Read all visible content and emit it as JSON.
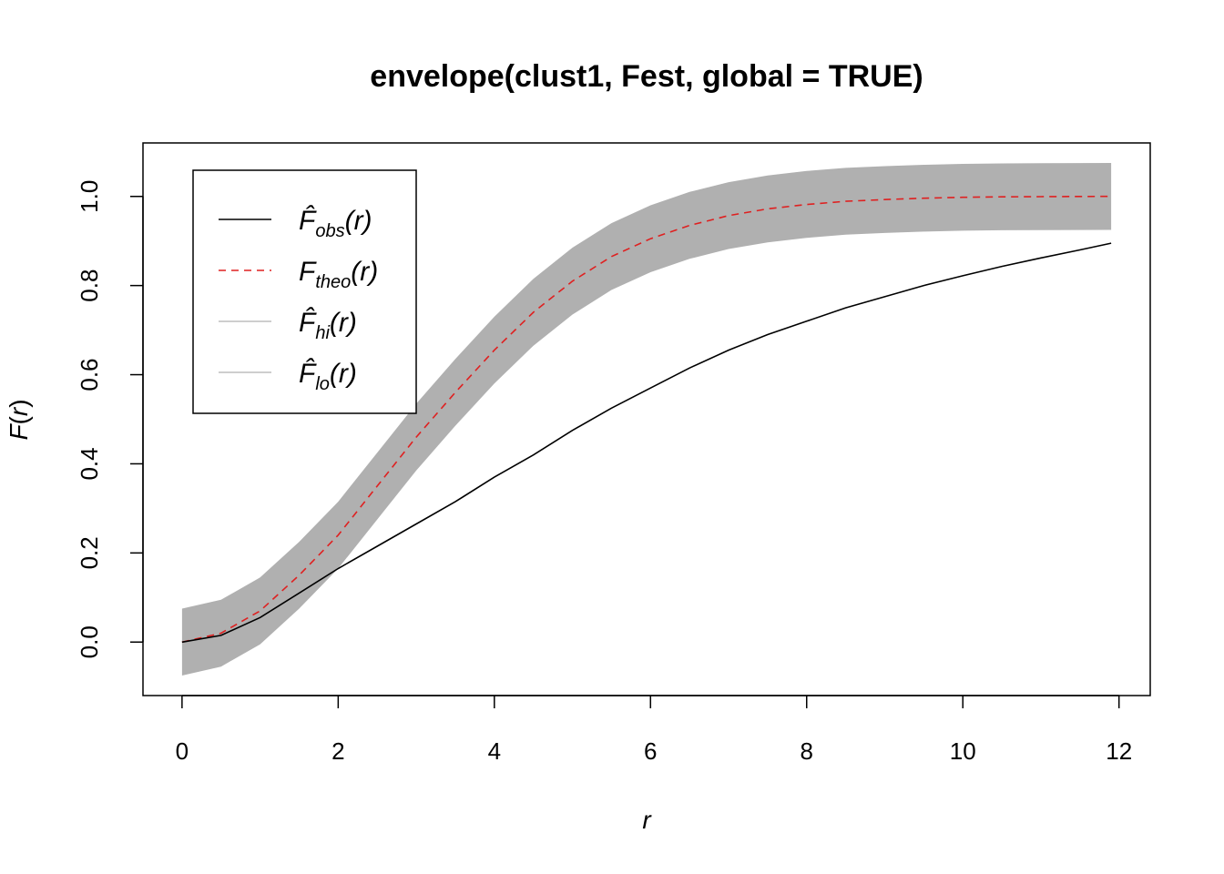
{
  "chart_data": {
    "type": "line",
    "title": "envelope(clust1, Fest, global = TRUE)",
    "xlabel": "r",
    "ylabel_main": "F",
    "ylabel_arg": "r",
    "xlim": [
      -0.5,
      12.4
    ],
    "ylim": [
      -0.12,
      1.12
    ],
    "xticks": [
      0,
      2,
      4,
      6,
      8,
      10,
      12
    ],
    "yticks": [
      0.0,
      0.2,
      0.4,
      0.6,
      0.8,
      1.0
    ],
    "xtick_labels": [
      "0",
      "2",
      "4",
      "6",
      "8",
      "10",
      "12"
    ],
    "ytick_labels": [
      "0.0",
      "0.2",
      "0.4",
      "0.6",
      "0.8",
      "1.0"
    ],
    "grid": false,
    "legend_position": "top-left",
    "colors": {
      "obs": "#000000",
      "theo": "#DF2020",
      "band": "#B0B0B0",
      "legend_band_line": "#BEBEBE"
    },
    "x": [
      0,
      0.5,
      1,
      1.5,
      2,
      2.5,
      3,
      3.5,
      4,
      4.5,
      5,
      5.5,
      6,
      6.5,
      7,
      7.5,
      8,
      8.5,
      9,
      9.5,
      10,
      10.5,
      11,
      11.5,
      11.9
    ],
    "series": [
      {
        "name": "obs",
        "legend_main": "F̂",
        "legend_sub": "obs",
        "legend_arg": "(r)",
        "style": "solid",
        "values": [
          0.0,
          0.015,
          0.055,
          0.11,
          0.165,
          0.215,
          0.265,
          0.315,
          0.37,
          0.42,
          0.475,
          0.525,
          0.57,
          0.615,
          0.655,
          0.69,
          0.72,
          0.75,
          0.775,
          0.8,
          0.822,
          0.843,
          0.862,
          0.88,
          0.895
        ]
      },
      {
        "name": "theo",
        "legend_main": "F",
        "legend_sub": "theo",
        "legend_arg": "(r)",
        "style": "dashed",
        "values": [
          0.0,
          0.02,
          0.07,
          0.15,
          0.24,
          0.35,
          0.46,
          0.56,
          0.655,
          0.74,
          0.81,
          0.865,
          0.905,
          0.935,
          0.957,
          0.972,
          0.982,
          0.989,
          0.993,
          0.996,
          0.998,
          0.999,
          0.9995,
          0.9998,
          1.0
        ]
      },
      {
        "name": "hi",
        "legend_main": "F̂",
        "legend_sub": "hi",
        "legend_arg": "(r)",
        "style": "band-upper",
        "values": [
          0.075,
          0.095,
          0.145,
          0.225,
          0.315,
          0.425,
          0.535,
          0.635,
          0.73,
          0.815,
          0.885,
          0.94,
          0.98,
          1.01,
          1.032,
          1.047,
          1.057,
          1.064,
          1.068,
          1.071,
          1.073,
          1.074,
          1.0745,
          1.0748,
          1.075
        ]
      },
      {
        "name": "lo",
        "legend_main": "F̂",
        "legend_sub": "lo",
        "legend_arg": "(r)",
        "style": "band-lower",
        "values": [
          -0.075,
          -0.055,
          -0.005,
          0.075,
          0.165,
          0.275,
          0.385,
          0.485,
          0.58,
          0.665,
          0.735,
          0.79,
          0.83,
          0.86,
          0.882,
          0.897,
          0.907,
          0.914,
          0.918,
          0.921,
          0.923,
          0.924,
          0.9245,
          0.9248,
          0.925
        ]
      }
    ]
  }
}
